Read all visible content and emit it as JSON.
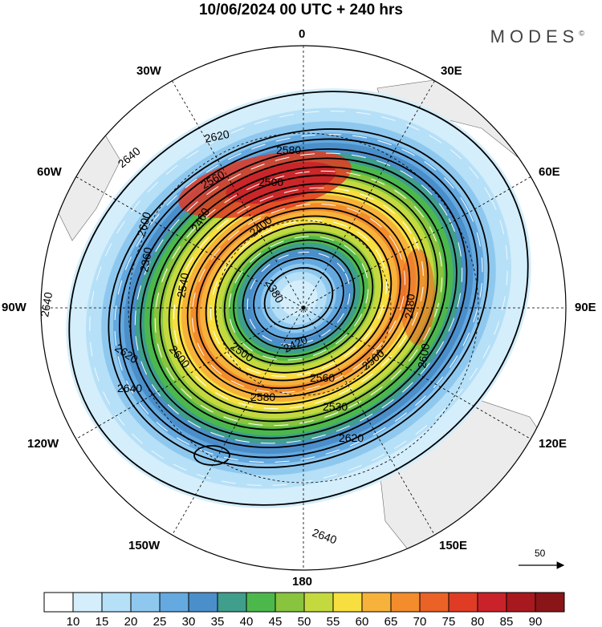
{
  "title": "10/06/2024  00 UTC  + 240 hrs",
  "brand": "MODES",
  "brand_mark": "©",
  "longitude_labels": {
    "0": "0",
    "30E": "30E",
    "60E": "60E",
    "90E": "90E",
    "120E": "120E",
    "150E": "150E",
    "180": "180",
    "150W": "150W",
    "120W": "120W",
    "90W": "90W",
    "60W": "60W",
    "30W": "30W"
  },
  "contour_labels": [
    "2640",
    "2620",
    "2580",
    "2500",
    "2560",
    "2460",
    "2600",
    "2540",
    "2400",
    "2380",
    "2420",
    "2360",
    "2640",
    "2620",
    "2600",
    "2500",
    "2560",
    "2500",
    "2480",
    "2580",
    "2530",
    "2620",
    "2640",
    "2640",
    "2600"
  ],
  "vector_scale": "50",
  "colorbar": {
    "labels": [
      "10",
      "15",
      "20",
      "25",
      "30",
      "35",
      "40",
      "45",
      "50",
      "55",
      "60",
      "65",
      "70",
      "75",
      "80",
      "85",
      "90"
    ],
    "colors": [
      "#ffffff",
      "#d4eefb",
      "#b6e0f7",
      "#8fc8ee",
      "#64a9e0",
      "#4b8fca",
      "#3f9e8c",
      "#4cb84c",
      "#88c43e",
      "#c4d93e",
      "#f6df3f",
      "#f6b23a",
      "#f28c2c",
      "#ea6226",
      "#e03b25",
      "#c9222a",
      "#a8191f",
      "#8a1519"
    ]
  }
}
